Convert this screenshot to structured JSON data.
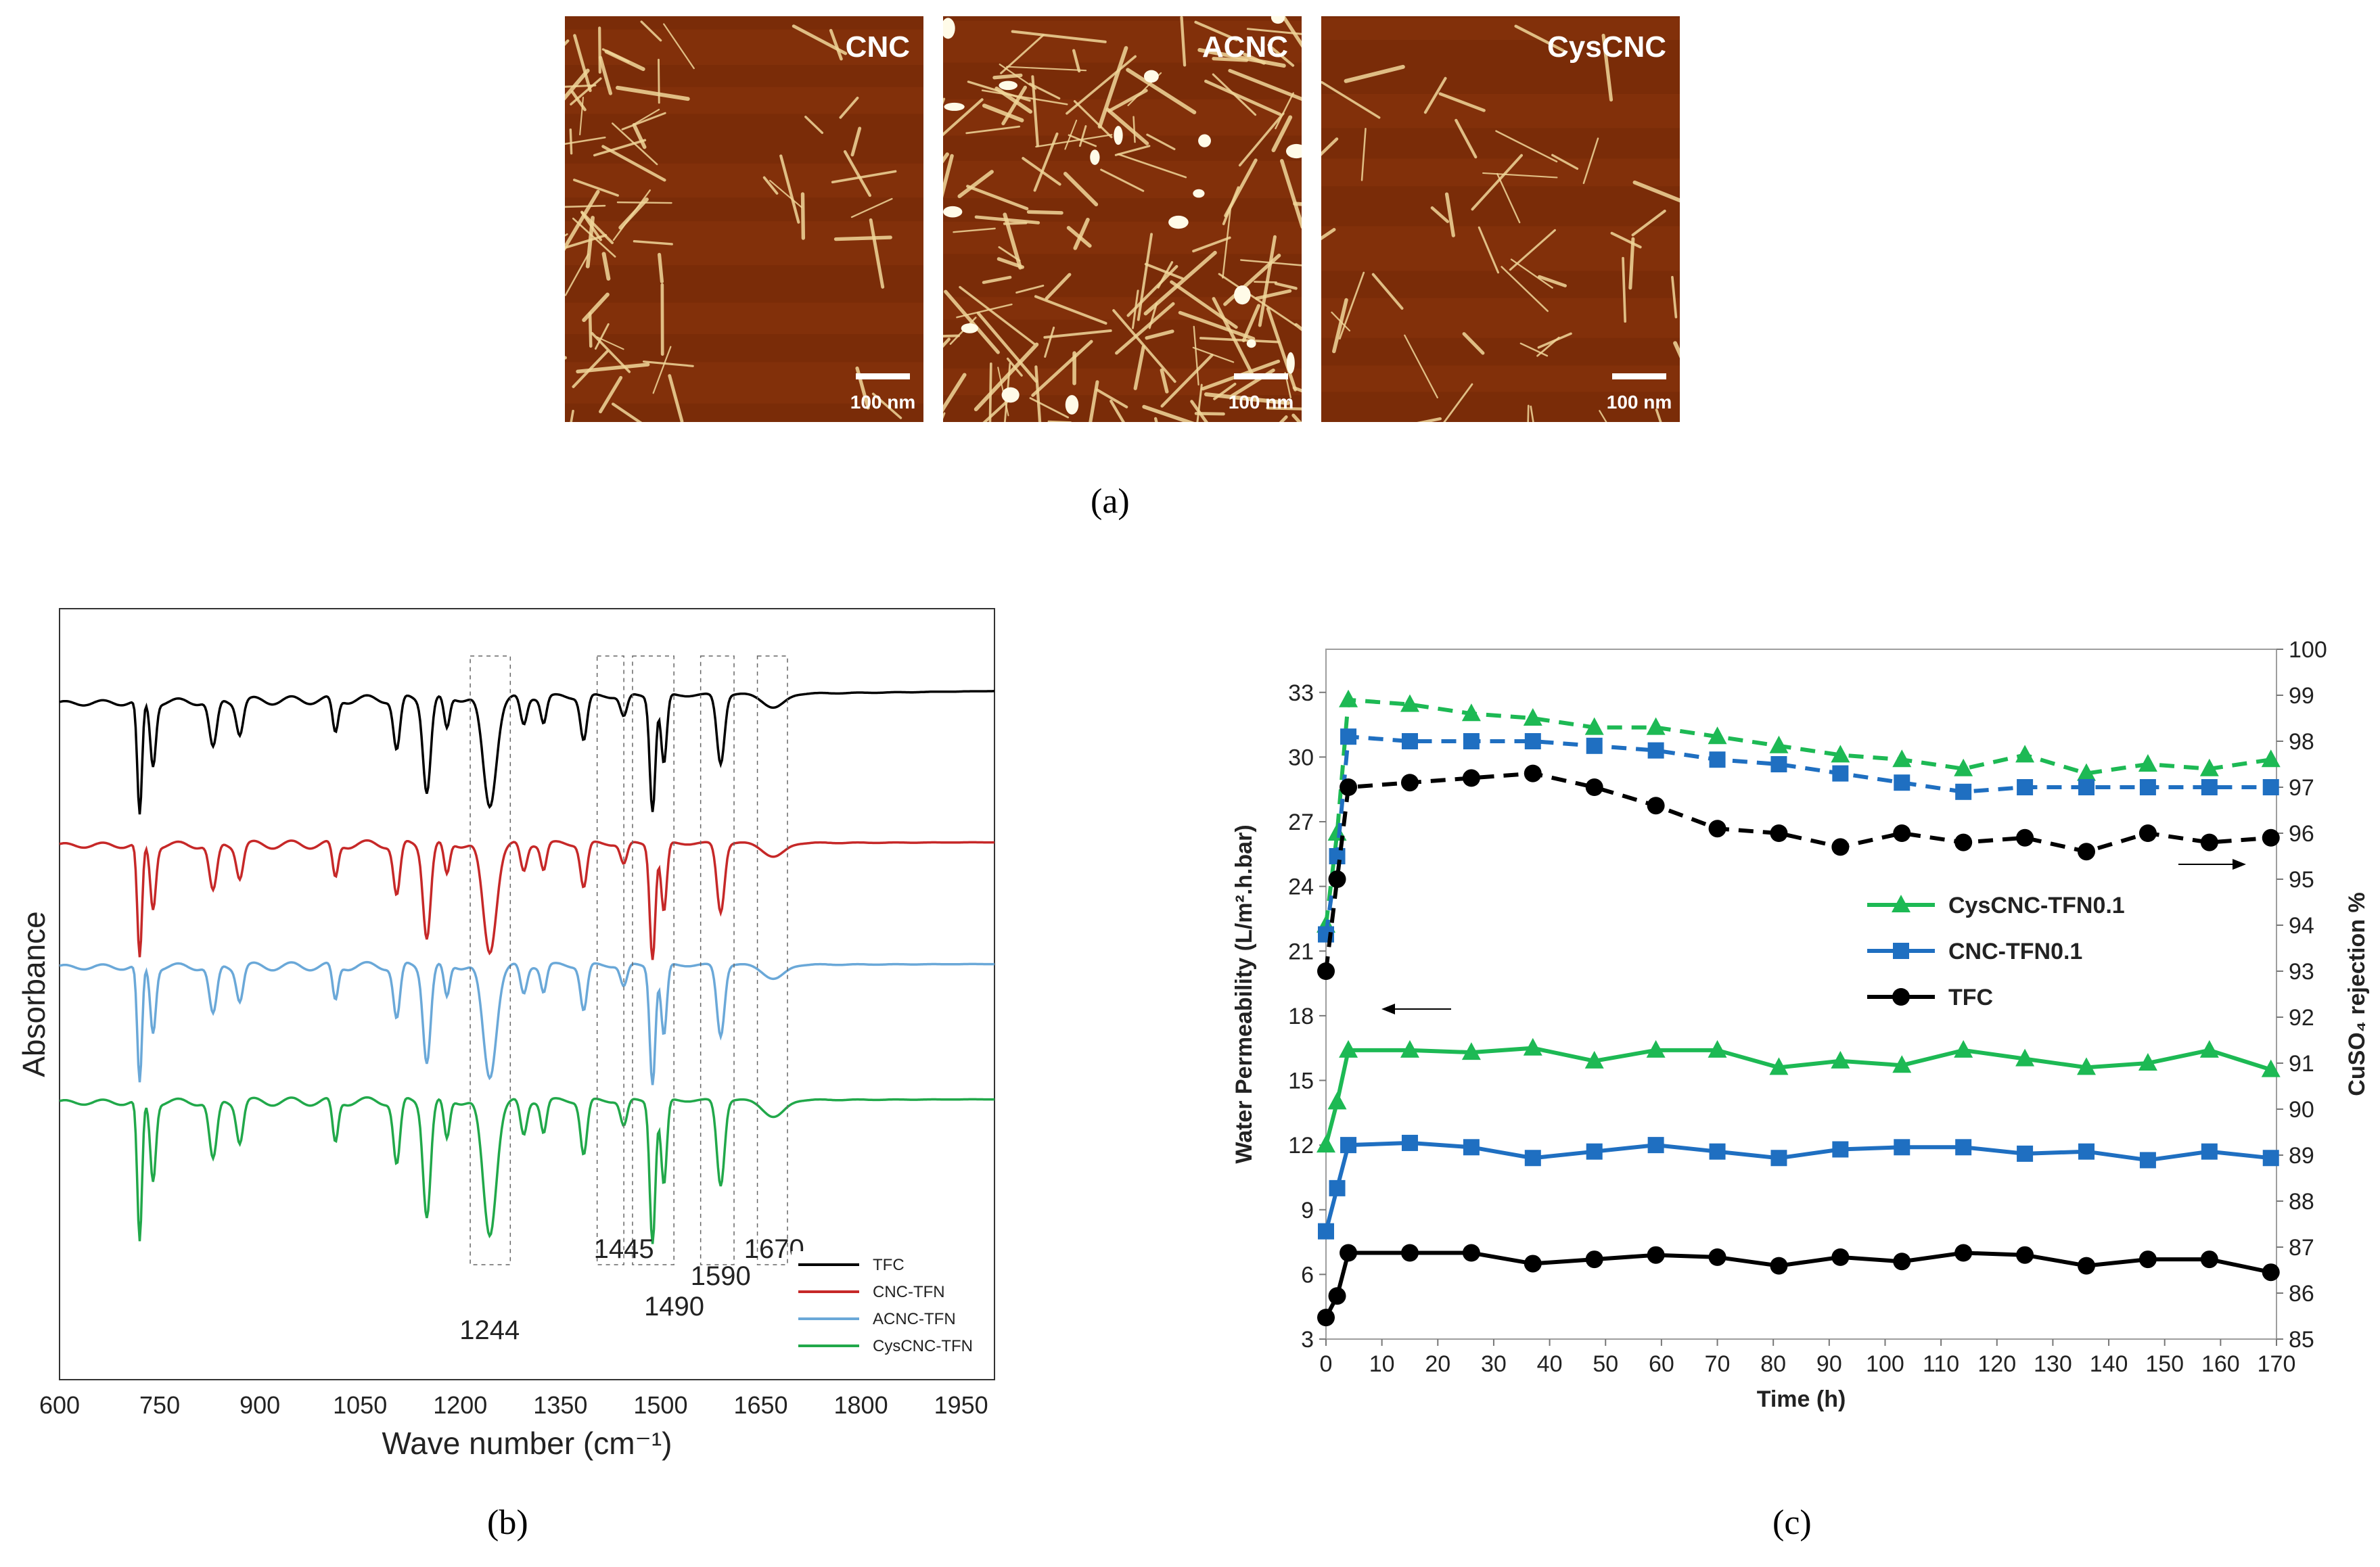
{
  "afm_panels": [
    {
      "name": "CNC",
      "scalebar_label": "100 nm"
    },
    {
      "name": "ACNC",
      "scalebar_label": "100 nm"
    },
    {
      "name": "CysCNC",
      "scalebar_label": "100 nm"
    }
  ],
  "panel_labels": {
    "a": "(a)",
    "b": "(b)",
    "c": "(c)"
  },
  "colors": {
    "afm_background": "#7a2c08",
    "afm_fiber": "#f1d79a",
    "tfc": "#000000",
    "cnc": "#1f6fc1",
    "cys": "#1db954",
    "ftir_tfc": "#000000",
    "ftir_cnc": "#c62828",
    "ftir_acnc": "#6aa8d8",
    "ftir_cys": "#21a84a"
  },
  "chart_data": [
    {
      "type": "line",
      "panel": "b",
      "xlabel": "Wave number (cm⁻¹)",
      "ylabel": "Absorbance",
      "xlim": [
        600,
        2000
      ],
      "x_ticks": [
        600,
        750,
        900,
        1050,
        1200,
        1350,
        1500,
        1650,
        1800,
        1950
      ],
      "series": [
        {
          "name": "TFC",
          "color_key": "ftir_tfc"
        },
        {
          "name": "CNC-TFN",
          "color_key": "ftir_cnc"
        },
        {
          "name": "ACNC-TFN",
          "color_key": "ftir_acnc"
        },
        {
          "name": "CysCNC-TFN",
          "color_key": "ftir_cys"
        }
      ],
      "peaks": [
        {
          "x": 720,
          "depth": 1.0,
          "width": 5
        },
        {
          "x": 740,
          "depth": 0.55,
          "width": 6
        },
        {
          "x": 830,
          "depth": 0.42,
          "width": 8
        },
        {
          "x": 870,
          "depth": 0.28,
          "width": 7
        },
        {
          "x": 1013,
          "depth": 0.3,
          "width": 6
        },
        {
          "x": 1105,
          "depth": 0.45,
          "width": 7
        },
        {
          "x": 1150,
          "depth": 0.8,
          "width": 8
        },
        {
          "x": 1180,
          "depth": 0.28,
          "width": 6
        },
        {
          "x": 1244,
          "depth": 0.95,
          "width": 14
        },
        {
          "x": 1295,
          "depth": 0.25,
          "width": 7
        },
        {
          "x": 1325,
          "depth": 0.22,
          "width": 6
        },
        {
          "x": 1385,
          "depth": 0.38,
          "width": 7
        },
        {
          "x": 1445,
          "depth": 0.18,
          "width": 7
        },
        {
          "x": 1488,
          "depth": 1.0,
          "width": 6
        },
        {
          "x": 1505,
          "depth": 0.6,
          "width": 6
        },
        {
          "x": 1590,
          "depth": 0.6,
          "width": 8
        },
        {
          "x": 1670,
          "depth": 0.12,
          "width": 22
        }
      ],
      "annotations": [
        "1244",
        "1445",
        "1490",
        "1590",
        "1670"
      ]
    },
    {
      "type": "line",
      "panel": "c",
      "xlabel": "Time (h)",
      "ylabel": "Water Permeability  (L/m².h.bar)",
      "y2label": "CuSO₄ rejection %",
      "xlim": [
        0,
        170
      ],
      "ylim": [
        3,
        35
      ],
      "y2lim": [
        85,
        100
      ],
      "x_ticks": [
        0,
        10,
        20,
        30,
        40,
        50,
        60,
        70,
        80,
        90,
        100,
        110,
        120,
        130,
        140,
        150,
        160,
        170
      ],
      "y_ticks": [
        3,
        6,
        9,
        12,
        15,
        18,
        21,
        24,
        27,
        30,
        33
      ],
      "y2_ticks": [
        85,
        86,
        87,
        88,
        89,
        90,
        91,
        92,
        93,
        94,
        95,
        96,
        97,
        98,
        99,
        100
      ],
      "x": [
        0,
        2,
        4,
        15,
        26,
        37,
        48,
        59,
        70,
        81,
        92,
        103,
        114,
        125,
        136,
        147,
        158,
        169
      ],
      "permeability": [
        {
          "name": "CysCNC-TFN0.1",
          "color_key": "cys",
          "marker": "triangle",
          "values": [
            12,
            14,
            16.4,
            16.4,
            16.3,
            16.5,
            15.9,
            16.4,
            16.4,
            15.6,
            15.9,
            15.7,
            16.4,
            16.0,
            15.6,
            15.8,
            16.4,
            15.5
          ]
        },
        {
          "name": "CNC-TFN0.1",
          "color_key": "cnc",
          "marker": "square",
          "values": [
            8,
            10,
            12,
            12.1,
            11.9,
            11.4,
            11.7,
            12.0,
            11.7,
            11.4,
            11.8,
            11.9,
            11.9,
            11.6,
            11.7,
            11.3,
            11.7,
            11.4
          ]
        },
        {
          "name": "TFC",
          "color_key": "tfc",
          "marker": "circle",
          "values": [
            4,
            5,
            7,
            7.0,
            7.0,
            6.5,
            6.7,
            6.9,
            6.8,
            6.4,
            6.8,
            6.6,
            7.0,
            6.9,
            6.4,
            6.7,
            6.7,
            6.1
          ]
        }
      ],
      "rejection": [
        {
          "name": "CysCNC-TFN0.1",
          "color_key": "cys",
          "marker": "triangle",
          "values": [
            94.0,
            96.0,
            98.9,
            98.8,
            98.6,
            98.5,
            98.3,
            98.3,
            98.1,
            97.9,
            97.7,
            97.6,
            97.4,
            97.7,
            97.3,
            97.5,
            97.4,
            97.6
          ]
        },
        {
          "name": "CNC-TFN0.1",
          "color_key": "cnc",
          "marker": "square",
          "values": [
            93.8,
            95.5,
            98.1,
            98.0,
            98.0,
            98.0,
            97.9,
            97.8,
            97.6,
            97.5,
            97.3,
            97.1,
            96.9,
            97.0,
            97.0,
            97.0,
            97.0,
            97.0
          ]
        },
        {
          "name": "TFC",
          "color_key": "tfc",
          "marker": "circle",
          "values": [
            93.0,
            95.0,
            97.0,
            97.1,
            97.2,
            97.3,
            97.0,
            96.6,
            96.1,
            96.0,
            95.7,
            96.0,
            95.8,
            95.9,
            95.6,
            96.0,
            95.8,
            95.9
          ]
        }
      ]
    }
  ]
}
